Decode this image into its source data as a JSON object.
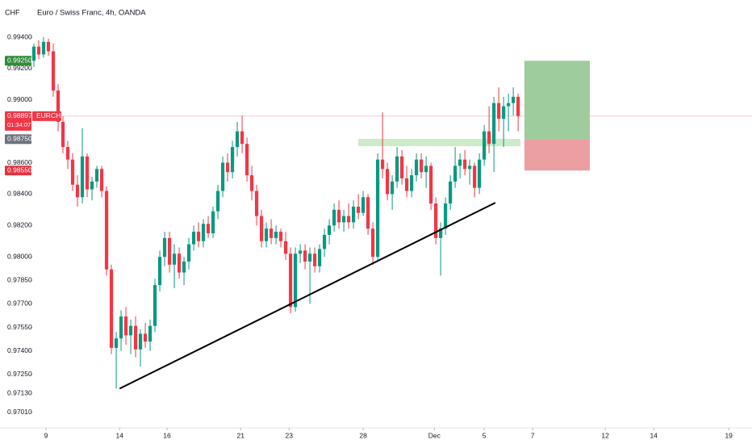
{
  "chart_data": {
    "type": "candlestick",
    "title": "Euro / Swiss Franc, 4h, OANDA",
    "currency": "CHF",
    "symbol": "EURCHF",
    "countdown": "01:34:07",
    "up_color": "#089981",
    "down_color": "#f23645",
    "xlim": [
      -7,
      148.3
    ],
    "ylim": [
      0.9691,
      0.99637
    ],
    "xticks": [
      {
        "value": 2.5,
        "label": "9"
      },
      {
        "value": 17.7,
        "label": "14"
      },
      {
        "value": 27.5,
        "label": "16"
      },
      {
        "value": 42.7,
        "label": "21"
      },
      {
        "value": 52.7,
        "label": "23"
      },
      {
        "value": 68,
        "label": "28"
      },
      {
        "value": 82.7,
        "label": "Dec"
      },
      {
        "value": 93,
        "label": "5"
      },
      {
        "value": 103,
        "label": "7"
      },
      {
        "value": 118,
        "label": "12"
      },
      {
        "value": 128,
        "label": "14"
      },
      {
        "value": 143.5,
        "label": "19"
      }
    ],
    "yticks": [
      {
        "value": 0.994,
        "label": "0.99400"
      },
      {
        "value": 0.992,
        "label": "0.99200"
      },
      {
        "value": 0.99,
        "label": "0.99000"
      },
      {
        "value": 0.986,
        "label": "0.98600"
      },
      {
        "value": 0.984,
        "label": "0.98400"
      },
      {
        "value": 0.982,
        "label": "0.98200"
      },
      {
        "value": 0.98,
        "label": "0.98000"
      },
      {
        "value": 0.9785,
        "label": "0.97850"
      },
      {
        "value": 0.977,
        "label": "0.97700"
      },
      {
        "value": 0.9755,
        "label": "0.97550"
      },
      {
        "value": 0.974,
        "label": "0.97400"
      },
      {
        "value": 0.9725,
        "label": "0.97250"
      },
      {
        "value": 0.9713,
        "label": "0.97130"
      },
      {
        "value": 0.9701,
        "label": "0.97010"
      }
    ],
    "candles": [
      [
        0.9925,
        0.9936,
        0.9921,
        0.9934
      ],
      [
        0.9934,
        0.9938,
        0.9926,
        0.9929
      ],
      [
        0.9929,
        0.994,
        0.9927,
        0.9937
      ],
      [
        0.9937,
        0.9939,
        0.9928,
        0.9931
      ],
      [
        0.9931,
        0.9936,
        0.9902,
        0.9906
      ],
      [
        0.9906,
        0.991,
        0.988,
        0.9886
      ],
      [
        0.9886,
        0.989,
        0.9866,
        0.987
      ],
      [
        0.987,
        0.9874,
        0.9856,
        0.9862
      ],
      [
        0.9862,
        0.9866,
        0.9842,
        0.9846
      ],
      [
        0.9846,
        0.9852,
        0.9832,
        0.9838
      ],
      [
        0.9838,
        0.9882,
        0.9834,
        0.9864
      ],
      [
        0.9864,
        0.9866,
        0.9838,
        0.9843
      ],
      [
        0.9843,
        0.9851,
        0.9836,
        0.9848
      ],
      [
        0.9848,
        0.9858,
        0.9844,
        0.9856
      ],
      [
        0.9856,
        0.9858,
        0.9838,
        0.9842
      ],
      [
        0.9842,
        0.9845,
        0.9788,
        0.9792
      ],
      [
        0.9792,
        0.9795,
        0.9738,
        0.9742
      ],
      [
        0.9742,
        0.9752,
        0.9716,
        0.9748
      ],
      [
        0.9748,
        0.9766,
        0.974,
        0.9762
      ],
      [
        0.9762,
        0.9768,
        0.9744,
        0.975
      ],
      [
        0.975,
        0.976,
        0.9738,
        0.9756
      ],
      [
        0.9756,
        0.9762,
        0.9736,
        0.9741
      ],
      [
        0.9741,
        0.9754,
        0.973,
        0.9751
      ],
      [
        0.9751,
        0.9758,
        0.9742,
        0.9746
      ],
      [
        0.9746,
        0.976,
        0.974,
        0.9756
      ],
      [
        0.9756,
        0.9786,
        0.9752,
        0.9782
      ],
      [
        0.9782,
        0.9804,
        0.9778,
        0.98
      ],
      [
        0.98,
        0.9816,
        0.9794,
        0.9812
      ],
      [
        0.9812,
        0.9816,
        0.979,
        0.9795
      ],
      [
        0.9795,
        0.9808,
        0.978,
        0.9802
      ],
      [
        0.9802,
        0.9806,
        0.9786,
        0.979
      ],
      [
        0.979,
        0.98,
        0.9782,
        0.9797
      ],
      [
        0.9797,
        0.9812,
        0.9792,
        0.9808
      ],
      [
        0.9808,
        0.982,
        0.9804,
        0.9816
      ],
      [
        0.9816,
        0.9822,
        0.9806,
        0.981
      ],
      [
        0.981,
        0.9824,
        0.9806,
        0.9821
      ],
      [
        0.9821,
        0.9826,
        0.9812,
        0.9815
      ],
      [
        0.9815,
        0.9832,
        0.9812,
        0.9829
      ],
      [
        0.9829,
        0.9846,
        0.9824,
        0.9842
      ],
      [
        0.9842,
        0.9864,
        0.9838,
        0.986
      ],
      [
        0.986,
        0.9866,
        0.9848,
        0.9854
      ],
      [
        0.9854,
        0.9874,
        0.985,
        0.987
      ],
      [
        0.987,
        0.9886,
        0.9864,
        0.988
      ],
      [
        0.988,
        0.989,
        0.9866,
        0.9872
      ],
      [
        0.9872,
        0.9876,
        0.9848,
        0.9852
      ],
      [
        0.9852,
        0.9858,
        0.9836,
        0.9842
      ],
      [
        0.9842,
        0.9846,
        0.982,
        0.9826
      ],
      [
        0.9826,
        0.983,
        0.9806,
        0.981
      ],
      [
        0.981,
        0.9822,
        0.9806,
        0.9818
      ],
      [
        0.9818,
        0.9824,
        0.9808,
        0.9812
      ],
      [
        0.9812,
        0.982,
        0.9808,
        0.9816
      ],
      [
        0.9816,
        0.9818,
        0.9806,
        0.981
      ],
      [
        0.981,
        0.9816,
        0.9798,
        0.9802
      ],
      [
        0.9802,
        0.9806,
        0.9764,
        0.9768
      ],
      [
        0.9768,
        0.9806,
        0.9765,
        0.9802
      ],
      [
        0.9802,
        0.9808,
        0.9796,
        0.9804
      ],
      [
        0.9804,
        0.9808,
        0.9792,
        0.9797
      ],
      [
        0.9797,
        0.9806,
        0.977,
        0.9802
      ],
      [
        0.9802,
        0.9806,
        0.979,
        0.9794
      ],
      [
        0.9794,
        0.9808,
        0.979,
        0.9805
      ],
      [
        0.9805,
        0.9818,
        0.98,
        0.9814
      ],
      [
        0.9814,
        0.9824,
        0.9808,
        0.982
      ],
      [
        0.982,
        0.9834,
        0.9816,
        0.983
      ],
      [
        0.983,
        0.9836,
        0.9818,
        0.9822
      ],
      [
        0.9822,
        0.983,
        0.9816,
        0.9826
      ],
      [
        0.9826,
        0.9834,
        0.9818,
        0.9822
      ],
      [
        0.9822,
        0.9836,
        0.9818,
        0.9832
      ],
      [
        0.9832,
        0.984,
        0.9824,
        0.9828
      ],
      [
        0.9828,
        0.9842,
        0.9826,
        0.9838
      ],
      [
        0.9838,
        0.984,
        0.9814,
        0.9818
      ],
      [
        0.9818,
        0.9822,
        0.9795,
        0.98
      ],
      [
        0.98,
        0.9866,
        0.9798,
        0.9862
      ],
      [
        0.9862,
        0.9892,
        0.985,
        0.9856
      ],
      [
        0.9856,
        0.986,
        0.9836,
        0.984
      ],
      [
        0.984,
        0.9852,
        0.983,
        0.9848
      ],
      [
        0.9848,
        0.987,
        0.9844,
        0.9864
      ],
      [
        0.9864,
        0.9868,
        0.9846,
        0.985
      ],
      [
        0.985,
        0.9858,
        0.9838,
        0.9842
      ],
      [
        0.9842,
        0.9856,
        0.9838,
        0.9852
      ],
      [
        0.9852,
        0.9866,
        0.9848,
        0.9862
      ],
      [
        0.9862,
        0.9866,
        0.985,
        0.9854
      ],
      [
        0.9854,
        0.9864,
        0.9844,
        0.9858
      ],
      [
        0.9858,
        0.986,
        0.983,
        0.9834
      ],
      [
        0.9834,
        0.9838,
        0.9808,
        0.9812
      ],
      [
        0.9812,
        0.9822,
        0.9788,
        0.9818
      ],
      [
        0.9818,
        0.9838,
        0.9814,
        0.9834
      ],
      [
        0.9834,
        0.9852,
        0.983,
        0.9848
      ],
      [
        0.9848,
        0.987,
        0.9844,
        0.9858
      ],
      [
        0.9858,
        0.9866,
        0.985,
        0.9862
      ],
      [
        0.9862,
        0.9868,
        0.9852,
        0.9856
      ],
      [
        0.9856,
        0.9862,
        0.9846,
        0.9858
      ],
      [
        0.9858,
        0.986,
        0.9838,
        0.9844
      ],
      [
        0.9844,
        0.9866,
        0.984,
        0.9862
      ],
      [
        0.9862,
        0.9884,
        0.9858,
        0.988
      ],
      [
        0.988,
        0.9896,
        0.9866,
        0.9872
      ],
      [
        0.9872,
        0.9902,
        0.9854,
        0.9898
      ],
      [
        0.9898,
        0.9908,
        0.988,
        0.9888
      ],
      [
        0.9888,
        0.9902,
        0.987,
        0.9896
      ],
      [
        0.9896,
        0.9904,
        0.988,
        0.9898
      ],
      [
        0.9898,
        0.9908,
        0.989,
        0.9902
      ],
      [
        0.9902,
        0.9904,
        0.988,
        0.98897
      ]
    ],
    "trendline": {
      "x": [
        17.7,
        95.3
      ],
      "y": [
        0.9716,
        0.98345
      ],
      "color": "#000000"
    },
    "zone": {
      "x": [
        67,
        100.5
      ],
      "y": [
        0.98705,
        0.98752
      ],
      "color": "#cdebc9"
    },
    "position": {
      "x": [
        101.3,
        114.8
      ],
      "entry": 0.9875,
      "target": 0.9925,
      "stop": 0.9855,
      "profit_color": "#9fcc9c",
      "loss_color": "#ec9fa3"
    },
    "last_price": {
      "value": 0.98897,
      "label": "0.98897",
      "color": "#f23645"
    },
    "price_labels": [
      {
        "value": 0.9925,
        "label": "0.99250",
        "color": "#2e8b38"
      },
      {
        "value": 0.9875,
        "label": "0.98750",
        "color": "#6e727c"
      },
      {
        "value": 0.9855,
        "label": "0.98550",
        "color": "#e2323f"
      }
    ]
  }
}
